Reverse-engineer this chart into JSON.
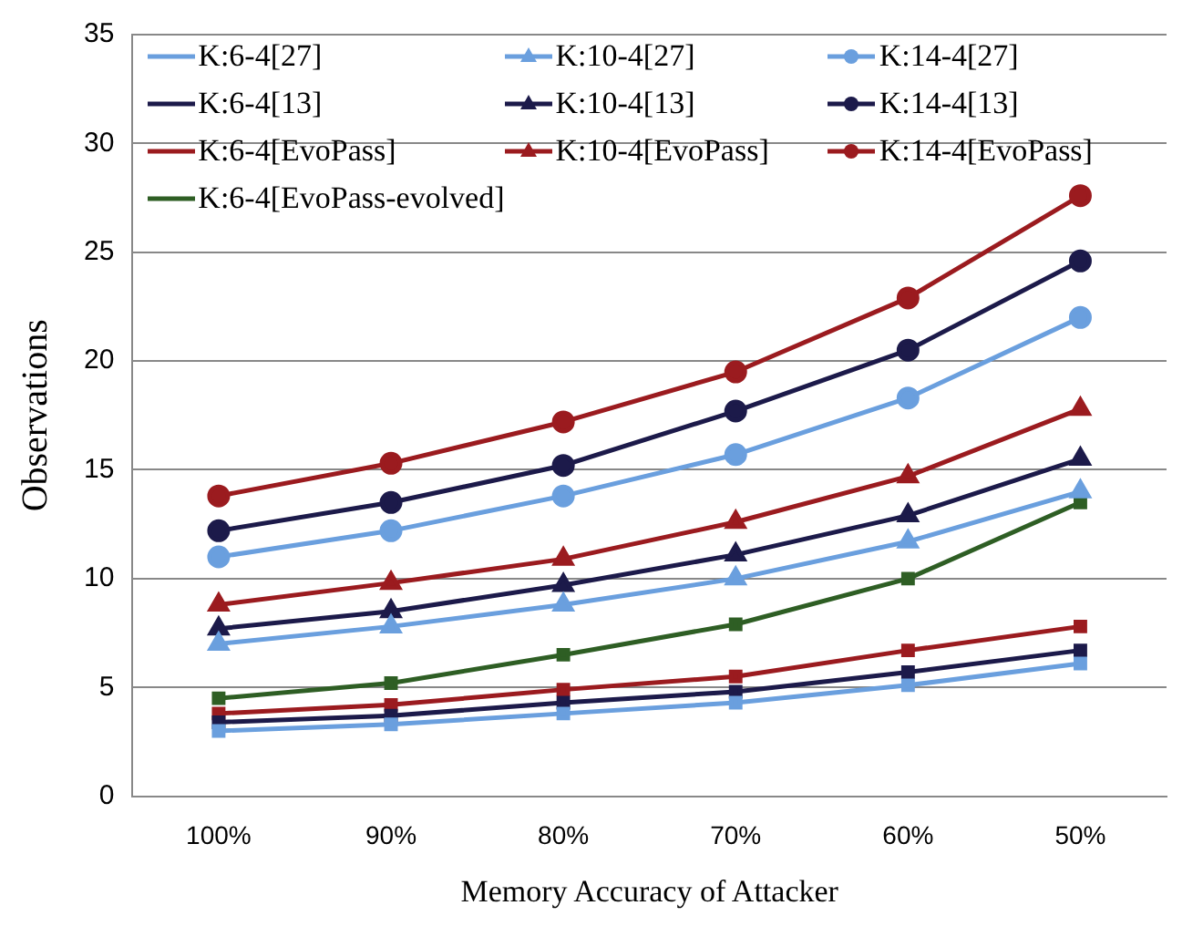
{
  "chart_data": {
    "type": "line",
    "xlabel": "Memory Accuracy of Attacker",
    "ylabel": "Observations",
    "categories": [
      "100%",
      "90%",
      "80%",
      "70%",
      "60%",
      "50%"
    ],
    "ylim": [
      0,
      35
    ],
    "yticks": [
      0,
      5,
      10,
      15,
      20,
      25,
      30,
      35
    ],
    "grid": "y",
    "legend": "top",
    "series": [
      {
        "name": "K:6-4[27]",
        "color": "#6a9fde",
        "marker": "square",
        "values": [
          3.0,
          3.3,
          3.8,
          4.3,
          5.1,
          6.1
        ]
      },
      {
        "name": "K:10-4[27]",
        "color": "#6a9fde",
        "marker": "triangle",
        "values": [
          7.0,
          7.8,
          8.8,
          10.0,
          11.7,
          14.0
        ]
      },
      {
        "name": "K:14-4[27]",
        "color": "#6a9fde",
        "marker": "circle",
        "values": [
          11.0,
          12.2,
          13.8,
          15.7,
          18.3,
          22.0
        ]
      },
      {
        "name": "K:6-4[13]",
        "color": "#1c1a4a",
        "marker": "square",
        "values": [
          3.4,
          3.7,
          4.3,
          4.8,
          5.7,
          6.7
        ]
      },
      {
        "name": "K:10-4[13]",
        "color": "#1c1a4a",
        "marker": "triangle",
        "values": [
          7.7,
          8.5,
          9.7,
          11.1,
          12.9,
          15.5
        ]
      },
      {
        "name": "K:14-4[13]",
        "color": "#1c1a4a",
        "marker": "circle",
        "values": [
          12.2,
          13.5,
          15.2,
          17.7,
          20.5,
          24.6
        ]
      },
      {
        "name": "K:6-4[EvoPass]",
        "color": "#9b1b1f",
        "marker": "square",
        "values": [
          3.8,
          4.2,
          4.9,
          5.5,
          6.7,
          7.8
        ]
      },
      {
        "name": "K:10-4[EvoPass]",
        "color": "#9b1b1f",
        "marker": "triangle",
        "values": [
          8.8,
          9.8,
          10.9,
          12.6,
          14.7,
          17.8
        ]
      },
      {
        "name": "K:14-4[EvoPass]",
        "color": "#9b1b1f",
        "marker": "circle",
        "values": [
          13.8,
          15.3,
          17.2,
          19.5,
          22.9,
          27.6
        ]
      },
      {
        "name": "K:6-4[EvoPass-evolved]",
        "color": "#2e5e24",
        "marker": "square",
        "values": [
          4.5,
          5.2,
          6.5,
          7.9,
          10.0,
          13.5
        ]
      }
    ]
  }
}
